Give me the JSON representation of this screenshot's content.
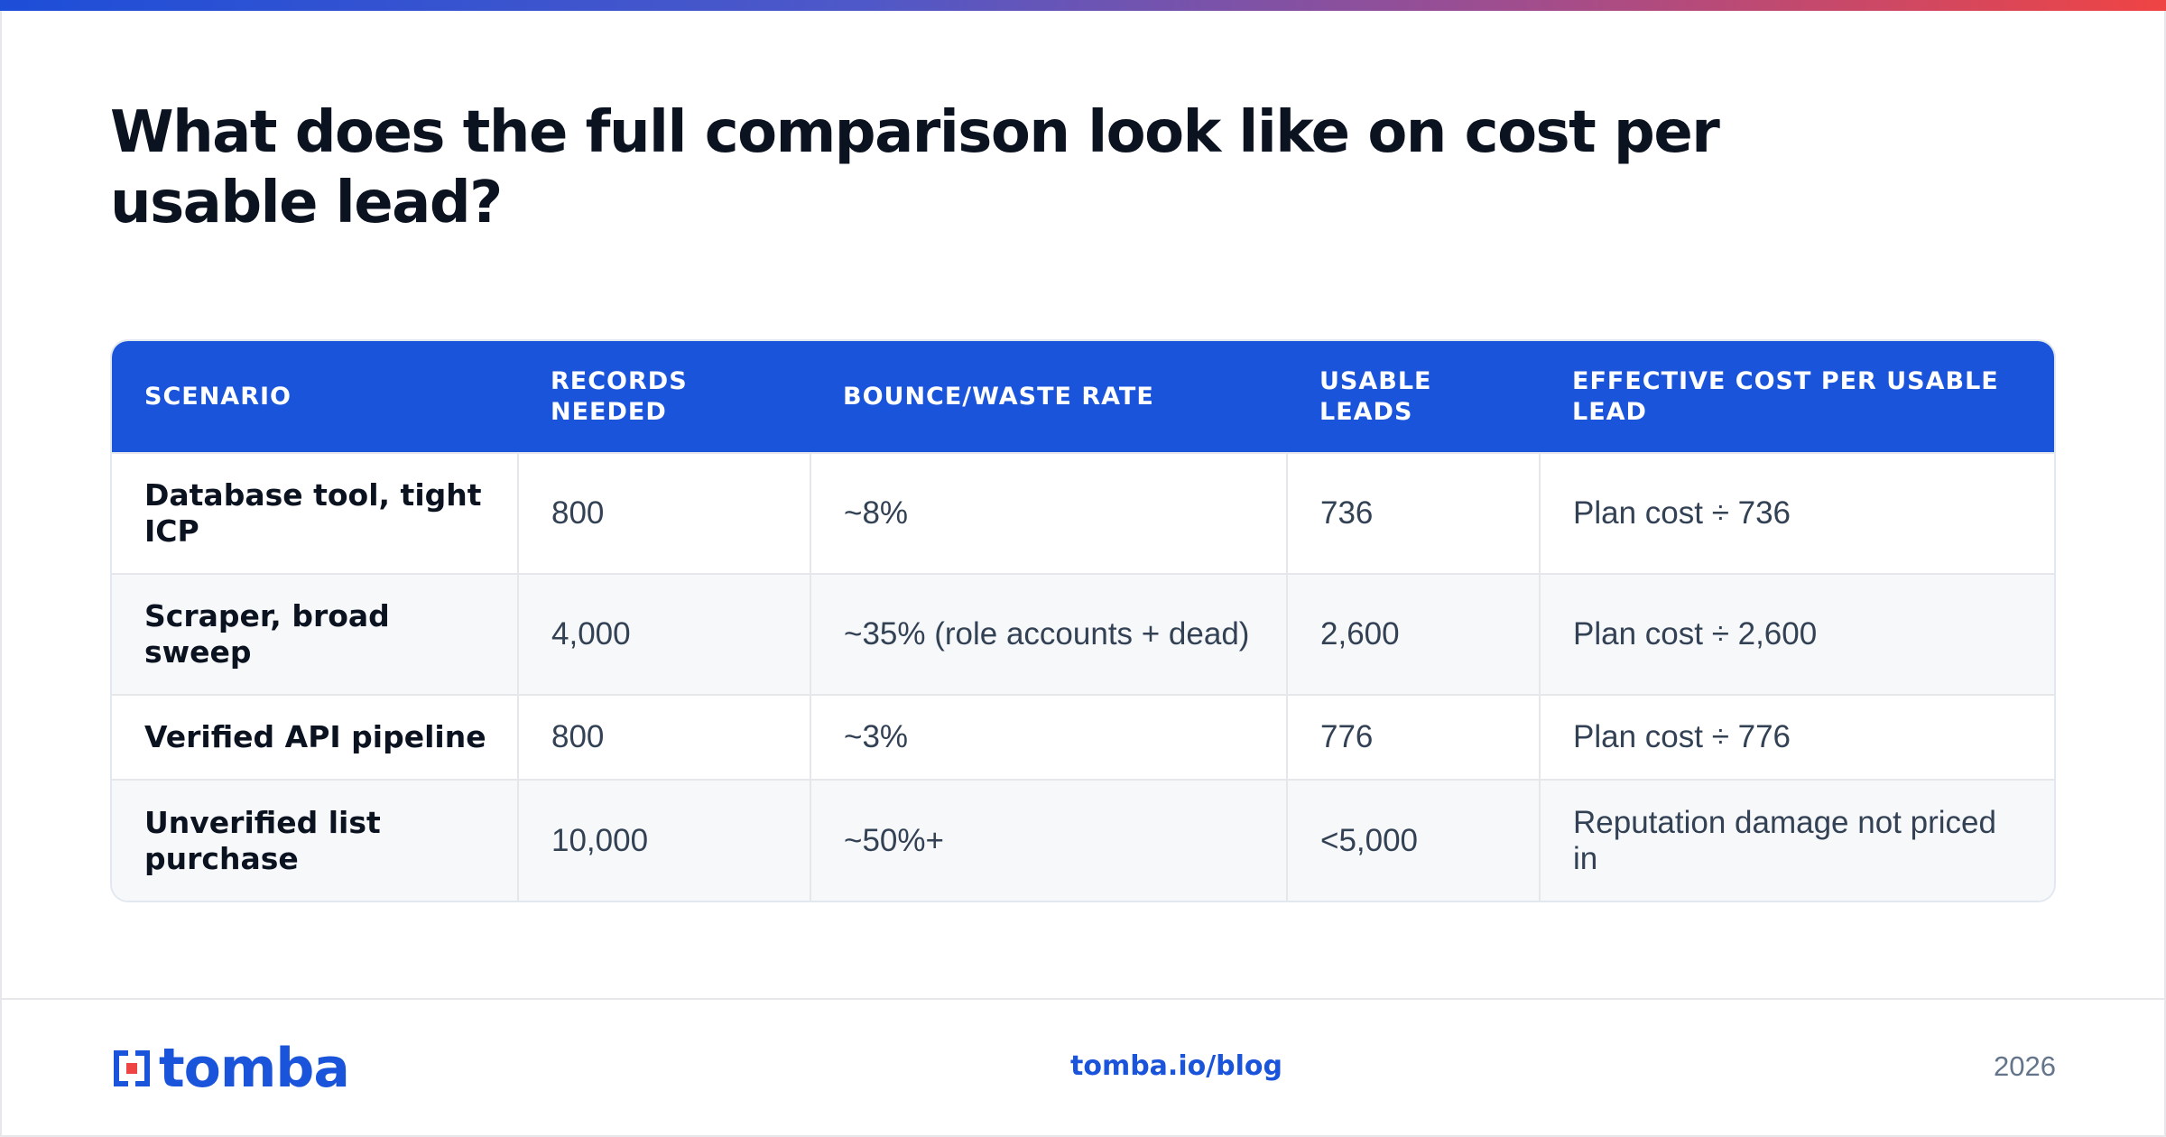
{
  "title": "What does the full comparison look like on cost per usable lead?",
  "table": {
    "headers": [
      "SCENARIO",
      "RECORDS NEEDED",
      "BOUNCE/WASTE RATE",
      "USABLE LEADS",
      "EFFECTIVE COST PER USABLE LEAD"
    ],
    "rows": [
      [
        "Database tool, tight ICP",
        "800",
        "~8%",
        "736",
        "Plan cost ÷ 736"
      ],
      [
        "Scraper, broad sweep",
        "4,000",
        "~35% (role accounts + dead)",
        "2,600",
        "Plan cost ÷ 2,600"
      ],
      [
        "Verified API pipeline",
        "800",
        "~3%",
        "776",
        "Plan cost ÷ 776"
      ],
      [
        "Unverified list purchase",
        "10,000",
        "~50%+",
        "<5,000",
        "Reputation damage not priced in"
      ]
    ]
  },
  "footer": {
    "logo_text": "tomba",
    "link": "tomba.io/blog",
    "year": "2026"
  },
  "colors": {
    "accent": "#1a54db",
    "gradient_start": "#1d4ed8",
    "gradient_end": "#ef4444"
  }
}
